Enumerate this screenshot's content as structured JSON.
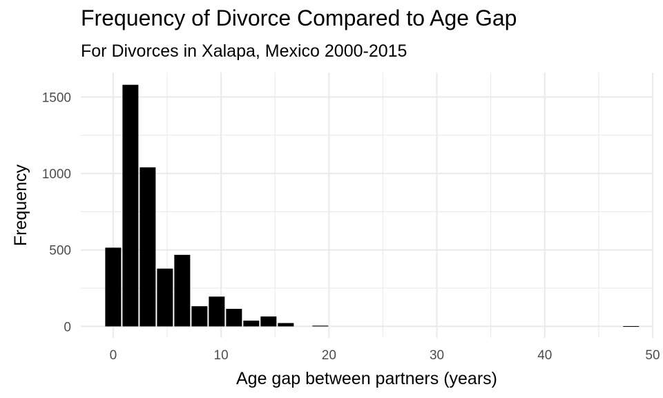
{
  "chart_data": {
    "type": "bar",
    "title": "Frequency of Divorce Compared to Age Gap",
    "subtitle": "For Divorces in Xalapa, Mexico 2000-2015",
    "xlabel": "Age gap between partners (years)",
    "ylabel": "Frequency",
    "xlim": [
      -3,
      50
    ],
    "ylim": [
      -75,
      1660
    ],
    "x_ticks": [
      0,
      10,
      20,
      30,
      40,
      50
    ],
    "y_ticks": [
      0,
      500,
      1000,
      1500
    ],
    "bin_width": 1.6,
    "x": [
      0,
      1.6,
      3.2,
      4.8,
      6.4,
      8.0,
      9.6,
      11.2,
      12.8,
      14.4,
      16.0,
      19.2,
      48.0
    ],
    "values": [
      515,
      1580,
      1040,
      378,
      468,
      132,
      195,
      115,
      38,
      65,
      22,
      5,
      2
    ],
    "grid": true,
    "bar_color": "#000000",
    "grid_color": "#ebebeb",
    "tick_label_color": "#4d4d4d"
  }
}
